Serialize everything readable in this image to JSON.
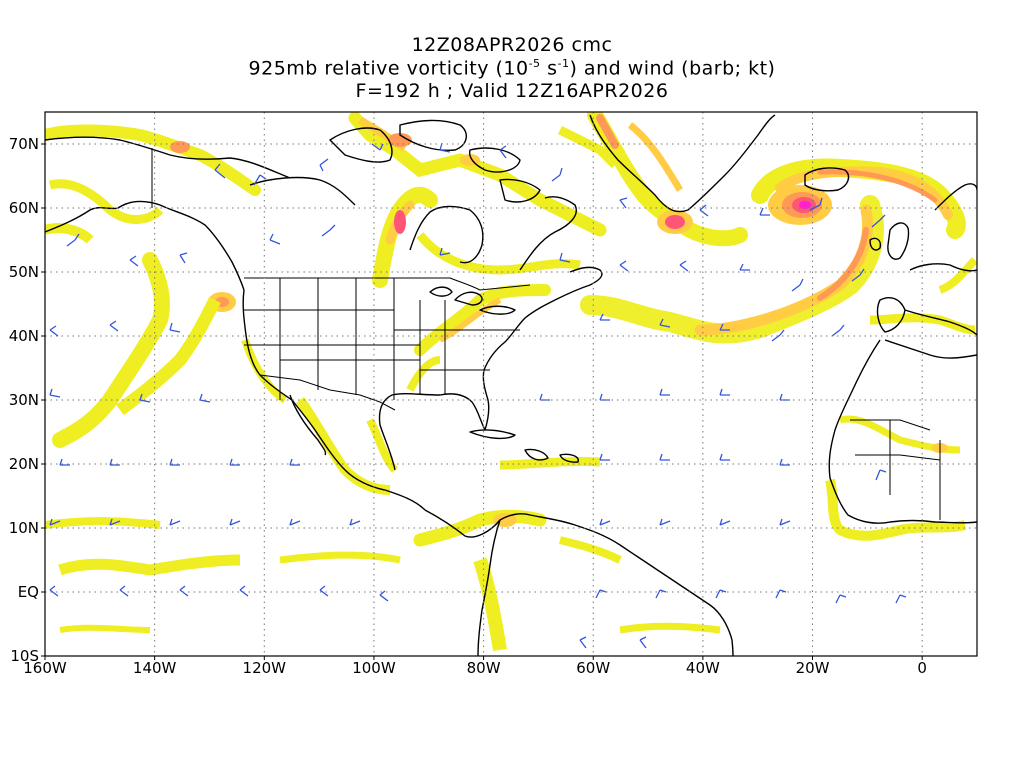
{
  "header": {
    "line1": "12Z08APR2026 cmc",
    "line2_prefix": "925mb relative vorticity (10",
    "line2_exp1": "-5",
    "line2_mid": " s",
    "line2_exp2": "-1",
    "line2_suffix": ") and wind (barb; kt)",
    "line3": "F=192 h ; Valid 12Z16APR2026"
  },
  "axes": {
    "lat_labels": [
      "70N",
      "60N",
      "50N",
      "40N",
      "30N",
      "20N",
      "10N",
      "EQ",
      "10S"
    ],
    "lon_labels": [
      "160W",
      "140W",
      "120W",
      "100W",
      "80W",
      "60W",
      "40W",
      "20W",
      "0"
    ]
  },
  "map": {
    "projection": "cylindrical equidistant",
    "lon_range": [
      -160,
      10
    ],
    "lat_range": [
      -10,
      75
    ],
    "grid_interval_deg": 10,
    "grid_style": "dotted"
  },
  "colors": {
    "coastline": "#000000",
    "barb": "#3355dd",
    "vort_levels": [
      "#eeee22",
      "#ffcc44",
      "#ff9955",
      "#ff5577",
      "#ff22cc"
    ]
  }
}
